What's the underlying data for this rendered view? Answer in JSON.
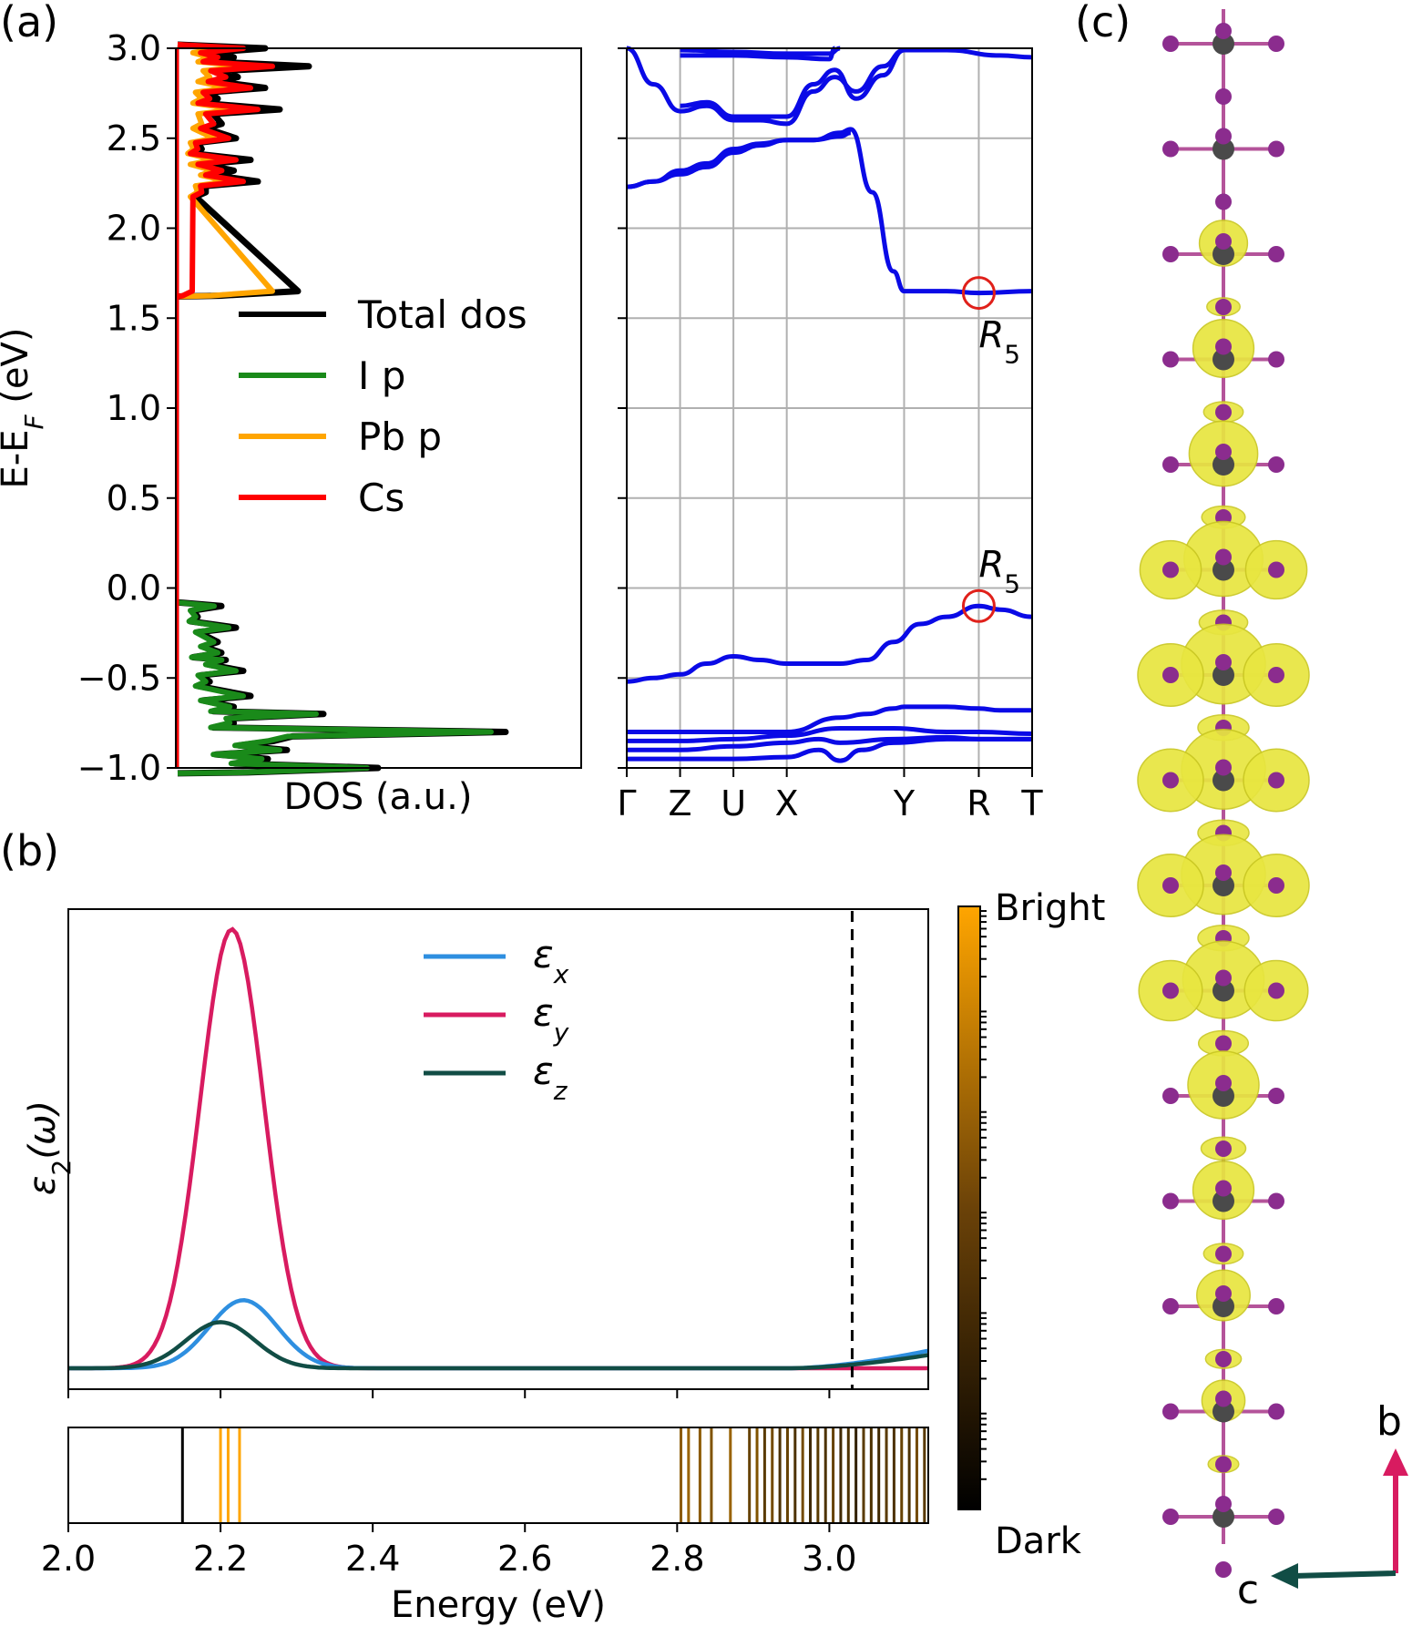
{
  "panel_labels": {
    "a": "(a)",
    "b": "(b)",
    "c": "(c)"
  },
  "chart_data": [
    {
      "type": "line",
      "name": "density-of-states",
      "xlabel": "DOS (a.u.)",
      "ylabel": "E-E",
      "ylabel_subscript": "F",
      "ylabel_unit": " (eV)",
      "ylim": [
        -1.0,
        3.0
      ],
      "yticks": [
        "−1.0",
        "−0.5",
        "0.0",
        "0.5",
        "1.0",
        "1.5",
        "2.0",
        "2.5",
        "3.0"
      ],
      "ytick_values": [
        -1.0,
        -0.5,
        0.0,
        0.5,
        1.0,
        1.5,
        2.0,
        2.5,
        3.0
      ],
      "series": [
        {
          "name": "Total dos",
          "color": "#000000"
        },
        {
          "name": "I p",
          "color": "#1a8a1a"
        },
        {
          "name": "Pb p",
          "color": "#ffa500"
        },
        {
          "name": "Cs",
          "color": "#ff0000"
        }
      ],
      "valence_peaks": {
        "energies": [
          -0.1,
          -0.16,
          -0.22,
          -0.3,
          -0.36,
          -0.4,
          -0.46,
          -0.52,
          -0.6,
          -0.66,
          -0.7,
          -0.75,
          -0.8,
          -0.85,
          -0.9,
          -0.95,
          -1.0
        ],
        "total": [
          0.12,
          0.1,
          0.16,
          0.2,
          0.12,
          0.24,
          0.18,
          0.16,
          0.2,
          0.28,
          0.4,
          0.28,
          0.9,
          0.48,
          0.3,
          0.45,
          0.55
        ],
        "ip": [
          0.1,
          0.09,
          0.14,
          0.18,
          0.11,
          0.22,
          0.16,
          0.14,
          0.18,
          0.26,
          0.38,
          0.26,
          0.86,
          0.45,
          0.28,
          0.42,
          0.52
        ]
      },
      "conduction_peaks": {
        "energies": [
          1.65,
          2.2,
          2.26,
          2.32,
          2.38,
          2.44,
          2.5,
          2.58,
          2.66,
          2.72,
          2.78,
          2.84,
          2.9,
          2.95,
          3.0
        ],
        "total": [
          0.33,
          0.14,
          0.22,
          0.28,
          0.2,
          0.12,
          0.16,
          0.22,
          0.28,
          0.2,
          0.24,
          0.3,
          0.36,
          0.28,
          0.24
        ],
        "pbp": [
          0.26,
          0.1,
          0.14,
          0.18,
          0.1,
          0.08,
          0.1,
          0.12,
          0.16,
          0.12,
          0.14,
          0.16,
          0.2,
          0.16,
          0.12
        ],
        "cs": [
          0.04,
          0.12,
          0.18,
          0.22,
          0.16,
          0.1,
          0.14,
          0.18,
          0.22,
          0.16,
          0.2,
          0.24,
          0.26,
          0.2,
          0.18
        ]
      }
    },
    {
      "type": "line",
      "name": "band-structure",
      "ylim": [
        -1.0,
        3.0
      ],
      "kpoints": [
        "Γ",
        "Z",
        "U",
        "X",
        "Y",
        "R",
        "T"
      ],
      "kpoint_positions": [
        0,
        1,
        2,
        3,
        5.2,
        6.6,
        7.6
      ],
      "x_range": [
        0,
        7.6
      ],
      "highlight_label": "R",
      "highlight_subscript": "5",
      "highlights": [
        {
          "k": 6.6,
          "e": 1.64
        },
        {
          "k": 6.6,
          "e": -0.1
        }
      ],
      "bands": [
        {
          "k": [
            0,
            0.5,
            1,
            1.5,
            2,
            2.5,
            3,
            3.5,
            4,
            4.5,
            5,
            5.5,
            6,
            6.6,
            7,
            7.6
          ],
          "e": [
            -0.52,
            -0.5,
            -0.48,
            -0.42,
            -0.38,
            -0.4,
            -0.42,
            -0.42,
            -0.42,
            -0.4,
            -0.3,
            -0.2,
            -0.16,
            -0.1,
            -0.12,
            -0.16
          ]
        },
        {
          "k": [
            0,
            1,
            2,
            3,
            4,
            4.5,
            5,
            5.2,
            6,
            6.6,
            7,
            7.6
          ],
          "e": [
            -0.8,
            -0.8,
            -0.8,
            -0.8,
            -0.72,
            -0.7,
            -0.67,
            -0.66,
            -0.66,
            -0.67,
            -0.68,
            -0.68
          ]
        },
        {
          "k": [
            0,
            1,
            2,
            3,
            4,
            5,
            6,
            6.6,
            7.6
          ],
          "e": [
            -0.85,
            -0.85,
            -0.84,
            -0.82,
            -0.78,
            -0.78,
            -0.8,
            -0.8,
            -0.81
          ]
        },
        {
          "k": [
            0,
            1,
            2,
            3,
            3.6,
            4,
            5,
            6,
            6.6,
            7.6
          ],
          "e": [
            -0.9,
            -0.9,
            -0.88,
            -0.86,
            -0.84,
            -0.86,
            -0.84,
            -0.83,
            -0.84,
            -0.84
          ]
        },
        {
          "k": [
            0,
            1,
            2,
            3,
            3.6,
            4,
            4.4,
            5,
            6,
            6.6,
            7.6
          ],
          "e": [
            -0.95,
            -0.95,
            -0.95,
            -0.94,
            -0.9,
            -0.96,
            -0.9,
            -0.86,
            -0.84,
            -0.84,
            -0.84
          ]
        },
        {
          "k": [
            0,
            0.5,
            1,
            1.5,
            2,
            2.5,
            3,
            3.5,
            4,
            4.2,
            4.6,
            5,
            5.2,
            6,
            6.6,
            7.6
          ],
          "e": [
            2.23,
            2.26,
            2.32,
            2.36,
            2.44,
            2.47,
            2.49,
            2.49,
            2.53,
            2.55,
            2.2,
            1.76,
            1.65,
            1.65,
            1.64,
            1.65
          ]
        },
        {
          "k": [
            0,
            0.5,
            1,
            1.5,
            2,
            2.5,
            3,
            3.5,
            4,
            4.2
          ],
          "e": [
            2.23,
            2.26,
            2.3,
            2.34,
            2.42,
            2.46,
            2.49,
            2.49,
            2.51,
            2.53
          ]
        },
        {
          "k": [
            0,
            0.5,
            1,
            1.5,
            2,
            2.5,
            3,
            3.5,
            3.9,
            4.3,
            4.8,
            5.2,
            6,
            7,
            7.6
          ],
          "e": [
            3.0,
            2.8,
            2.65,
            2.68,
            2.6,
            2.6,
            2.58,
            2.76,
            2.84,
            2.76,
            2.9,
            2.99,
            2.99,
            2.96,
            2.95
          ]
        },
        {
          "k": [
            1,
            1.5,
            2,
            2.5,
            3,
            3.5,
            3.9,
            4.3,
            4.8,
            5.2
          ],
          "e": [
            2.68,
            2.7,
            2.62,
            2.62,
            2.62,
            2.8,
            2.88,
            2.72,
            2.85,
            2.99
          ]
        },
        {
          "k": [
            1,
            2,
            3,
            3.8,
            4.0
          ],
          "e": [
            2.99,
            2.98,
            2.97,
            2.97,
            3.0
          ]
        },
        {
          "k": [
            1,
            2,
            3,
            3.8,
            3.9
          ],
          "e": [
            2.96,
            2.96,
            2.95,
            2.94,
            3.0
          ]
        }
      ]
    },
    {
      "type": "line",
      "name": "dielectric-spectrum",
      "xlabel": "Energy (eV)",
      "ylabel": "ε",
      "ylabel_subscript": "2",
      "ylabel_suffix": "(ω)",
      "xlim": [
        2.0,
        3.13
      ],
      "xticks": [
        "2.0",
        "2.2",
        "2.4",
        "2.6",
        "2.8",
        "3.0"
      ],
      "xtick_values": [
        2.0,
        2.2,
        2.4,
        2.6,
        2.8,
        3.0
      ],
      "dashed_line_x": 3.03,
      "series": [
        {
          "name": "x",
          "color": "#2e8fe0",
          "peak_center": 2.23,
          "peak_height": 0.155,
          "peak_width": 0.045,
          "tail": 0.04
        },
        {
          "name": "y",
          "color": "#d81b60",
          "peak_center": 2.215,
          "peak_height": 1.0,
          "peak_width": 0.042,
          "tail": 0.0
        },
        {
          "name": "z",
          "color": "#114d45",
          "peak_center": 2.2,
          "peak_height": 0.105,
          "peak_width": 0.045,
          "tail": 0.03
        }
      ],
      "legend_symbol": "ε"
    },
    {
      "type": "bar",
      "name": "exciton-oscillator-strength",
      "colorbar_labels": {
        "top": "Bright",
        "bottom": "Dark"
      },
      "lines": [
        {
          "e": 2.15,
          "b": 0.0
        },
        {
          "e": 2.2,
          "b": 1.0
        },
        {
          "e": 2.21,
          "b": 1.0
        },
        {
          "e": 2.225,
          "b": 1.0
        },
        {
          "e": 2.805,
          "b": 0.55
        },
        {
          "e": 2.815,
          "b": 0.6
        },
        {
          "e": 2.83,
          "b": 0.55
        },
        {
          "e": 2.845,
          "b": 0.5
        },
        {
          "e": 2.87,
          "b": 0.6
        },
        {
          "e": 2.895,
          "b": 0.4
        },
        {
          "e": 2.905,
          "b": 0.5
        },
        {
          "e": 2.915,
          "b": 0.35
        },
        {
          "e": 2.925,
          "b": 0.45
        },
        {
          "e": 2.935,
          "b": 0.3
        },
        {
          "e": 2.945,
          "b": 0.4
        },
        {
          "e": 2.955,
          "b": 0.3
        },
        {
          "e": 2.965,
          "b": 0.45
        },
        {
          "e": 2.975,
          "b": 0.25
        },
        {
          "e": 2.985,
          "b": 0.35
        },
        {
          "e": 2.995,
          "b": 0.3
        },
        {
          "e": 3.005,
          "b": 0.4
        },
        {
          "e": 3.015,
          "b": 0.25
        },
        {
          "e": 3.025,
          "b": 0.3
        },
        {
          "e": 3.035,
          "b": 0.2
        },
        {
          "e": 3.045,
          "b": 0.35
        },
        {
          "e": 3.055,
          "b": 0.3
        },
        {
          "e": 3.065,
          "b": 0.25
        },
        {
          "e": 3.075,
          "b": 0.35
        },
        {
          "e": 3.085,
          "b": 0.3
        },
        {
          "e": 3.095,
          "b": 0.4
        },
        {
          "e": 3.105,
          "b": 0.3
        },
        {
          "e": 3.115,
          "b": 0.45
        },
        {
          "e": 3.125,
          "b": 0.35
        }
      ]
    }
  ],
  "structure": {
    "axis_labels": {
      "up": "b",
      "left": "c"
    },
    "atom_colors": {
      "iodine": "#8b2c8e",
      "lead": "#4a4a4a",
      "isosurface": "#e8e640"
    },
    "unit_rows": 15,
    "lobe_sizes": [
      0.0,
      0.0,
      0.3,
      0.55,
      0.7,
      0.9,
      1.0,
      1.0,
      1.0,
      0.95,
      0.75,
      0.55,
      0.4,
      0.2,
      0.0
    ]
  }
}
